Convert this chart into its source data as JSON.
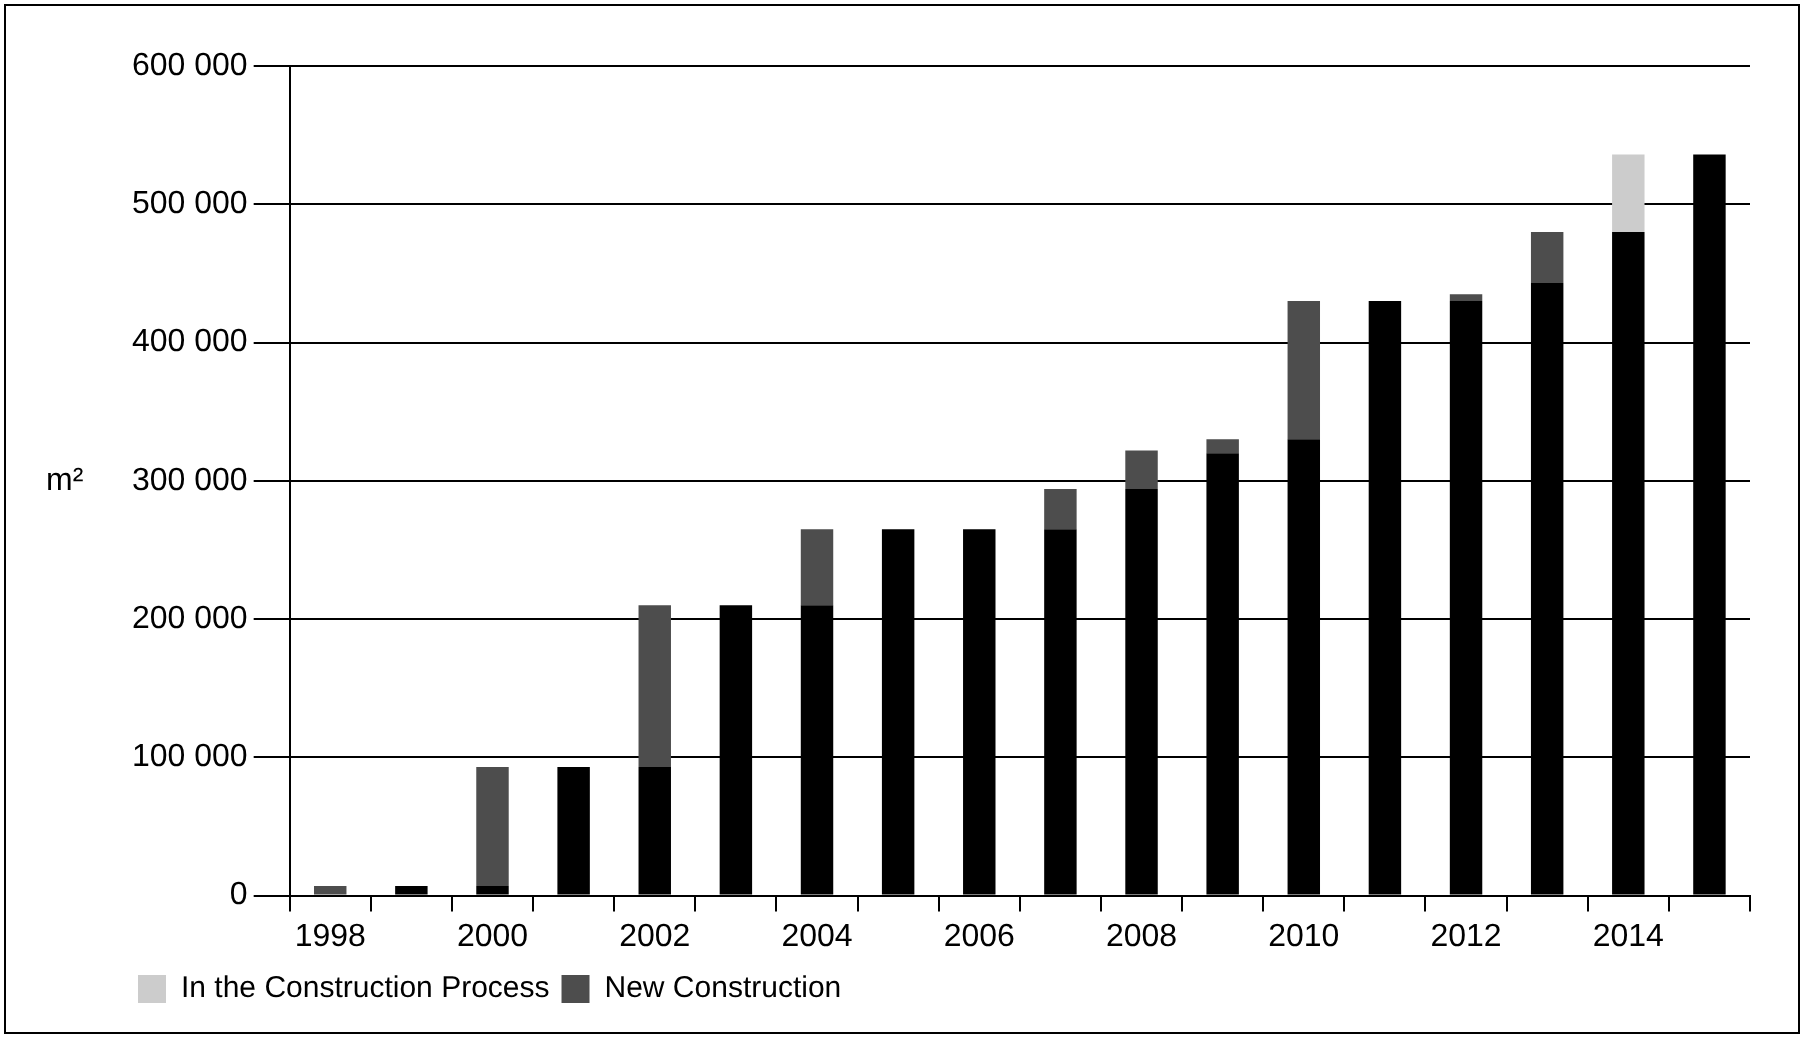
{
  "chart_data": {
    "type": "bar",
    "stacked": true,
    "ylabel": "m²",
    "categories": [
      "1998",
      null,
      "2000",
      null,
      "2002",
      null,
      "2004",
      null,
      "2006",
      null,
      "2008",
      null,
      "2010",
      null,
      "2012",
      null,
      "2014",
      null
    ],
    "series": [
      {
        "color": "#000000",
        "values": [
          0,
          7000,
          7000,
          93000,
          93000,
          210000,
          210000,
          265000,
          265000,
          265000,
          294000,
          320000,
          330000,
          430000,
          430000,
          443000,
          480000,
          536000
        ]
      },
      {
        "name": "New Construction",
        "color": "#4d4d4d",
        "values": [
          7000,
          0,
          86000,
          0,
          117000,
          0,
          55000,
          0,
          0,
          29000,
          28000,
          10000,
          100000,
          0,
          5000,
          37000,
          0,
          0
        ]
      },
      {
        "name": "In the Construction Process",
        "color": "#cccccc",
        "values": [
          0,
          0,
          0,
          0,
          0,
          0,
          0,
          0,
          0,
          0,
          0,
          0,
          0,
          0,
          0,
          0,
          56000,
          0
        ]
      }
    ],
    "ylim": [
      0,
      600000
    ],
    "yticks": [
      {
        "value": 0,
        "label": "0"
      },
      {
        "value": 100000,
        "label": "100 000"
      },
      {
        "value": 200000,
        "label": "200 000"
      },
      {
        "value": 300000,
        "label": "300 000"
      },
      {
        "value": 400000,
        "label": "400 000"
      },
      {
        "value": 500000,
        "label": "500 000"
      },
      {
        "value": 600000,
        "label": "600 000"
      }
    ],
    "grid": "y",
    "legend": "bottom left"
  }
}
